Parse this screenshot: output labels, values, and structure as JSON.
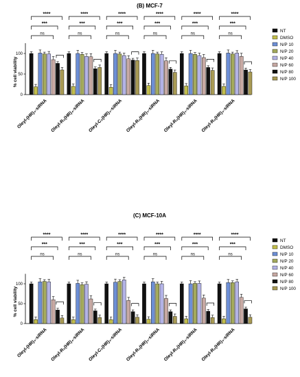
{
  "chart_data": [
    {
      "type": "bar",
      "title": "(B) MCF-7",
      "ylabel": "% cell viability",
      "ylim": [
        0,
        125
      ],
      "yticks": [
        "0",
        "50",
        "100"
      ],
      "categories": [
        "Oleyl-(HR)₄-siRNA",
        "Oleyl-R₅(HR)₄-siRNA",
        "Oleyl-C₅(HR)₄-siRNA",
        "Oleyl-R₅(HR)₄-siRNA",
        "Oleyl-R₅(HR)₄-siRNA",
        "Oleyl-R₅(HR)₄-siRNA"
      ],
      "series": [
        {
          "name": "NT",
          "color": "#111111",
          "values": [
            100,
            100,
            100,
            100,
            100,
            100
          ]
        },
        {
          "name": "DMSO",
          "color": "#c2be4c",
          "values": [
            19,
            20,
            18,
            22,
            21,
            20
          ]
        },
        {
          "name": "N/P 10",
          "color": "#6d8fd6",
          "values": [
            101,
            100,
            100,
            100,
            100,
            101
          ]
        },
        {
          "name": "N/P 20",
          "color": "#a4aa5c",
          "values": [
            99,
            98,
            99,
            99,
            98,
            99
          ]
        },
        {
          "name": "N/P 40",
          "color": "#b3b3e6",
          "values": [
            99,
            93,
            95,
            98,
            95,
            101
          ]
        },
        {
          "name": "N/P 60",
          "color": "#c7a9a3",
          "values": [
            85,
            92,
            87,
            82,
            90,
            93
          ]
        },
        {
          "name": "N/P 80",
          "color": "#111111",
          "values": [
            76,
            63,
            84,
            62,
            66,
            60
          ]
        },
        {
          "name": "N/P 100",
          "color": "#a89a54",
          "values": [
            60,
            66,
            83,
            54,
            59,
            55
          ]
        }
      ],
      "significance": [
        "****",
        "***",
        "ns"
      ],
      "legend": "right"
    },
    {
      "type": "bar",
      "title": "(C) MCF-10A",
      "ylabel": "% cell viability",
      "ylim": [
        0,
        125
      ],
      "yticks": [
        "0",
        "50",
        "100"
      ],
      "categories": [
        "Oleyl-(HR)₄-siRNA",
        "Oleyl-R₅(HR)₄-siRNA",
        "Oleyl-C₅(HR)₄-siRNA",
        "Oleyl-R₅(HR)₄-siRNA",
        "Oleyl-R₅(HR)₄-siRNA",
        "Oleyl-R₅(HR)₄-siRNA"
      ],
      "series": [
        {
          "name": "NT",
          "color": "#111111",
          "values": [
            100,
            100,
            100,
            100,
            100,
            100
          ]
        },
        {
          "name": "DMSO",
          "color": "#c2be4c",
          "values": [
            10,
            10,
            10,
            11,
            12,
            12
          ]
        },
        {
          "name": "N/P 10",
          "color": "#6d8fd6",
          "values": [
            105,
            101,
            104,
            105,
            100,
            103
          ]
        },
        {
          "name": "N/P 20",
          "color": "#a4aa5c",
          "values": [
            106,
            98,
            106,
            100,
            101,
            103
          ]
        },
        {
          "name": "N/P 40",
          "color": "#b3b3e6",
          "values": [
            105,
            99,
            110,
            100,
            101,
            105
          ]
        },
        {
          "name": "N/P 60",
          "color": "#c7a9a3",
          "values": [
            60,
            62,
            58,
            63,
            64,
            66
          ]
        },
        {
          "name": "N/P 80",
          "color": "#111111",
          "values": [
            34,
            32,
            30,
            30,
            31,
            37
          ]
        },
        {
          "name": "N/P 100",
          "color": "#a89a54",
          "values": [
            14,
            15,
            16,
            18,
            15,
            16
          ]
        }
      ],
      "significance": [
        "****",
        "***",
        "ns"
      ],
      "legend": "right"
    }
  ]
}
